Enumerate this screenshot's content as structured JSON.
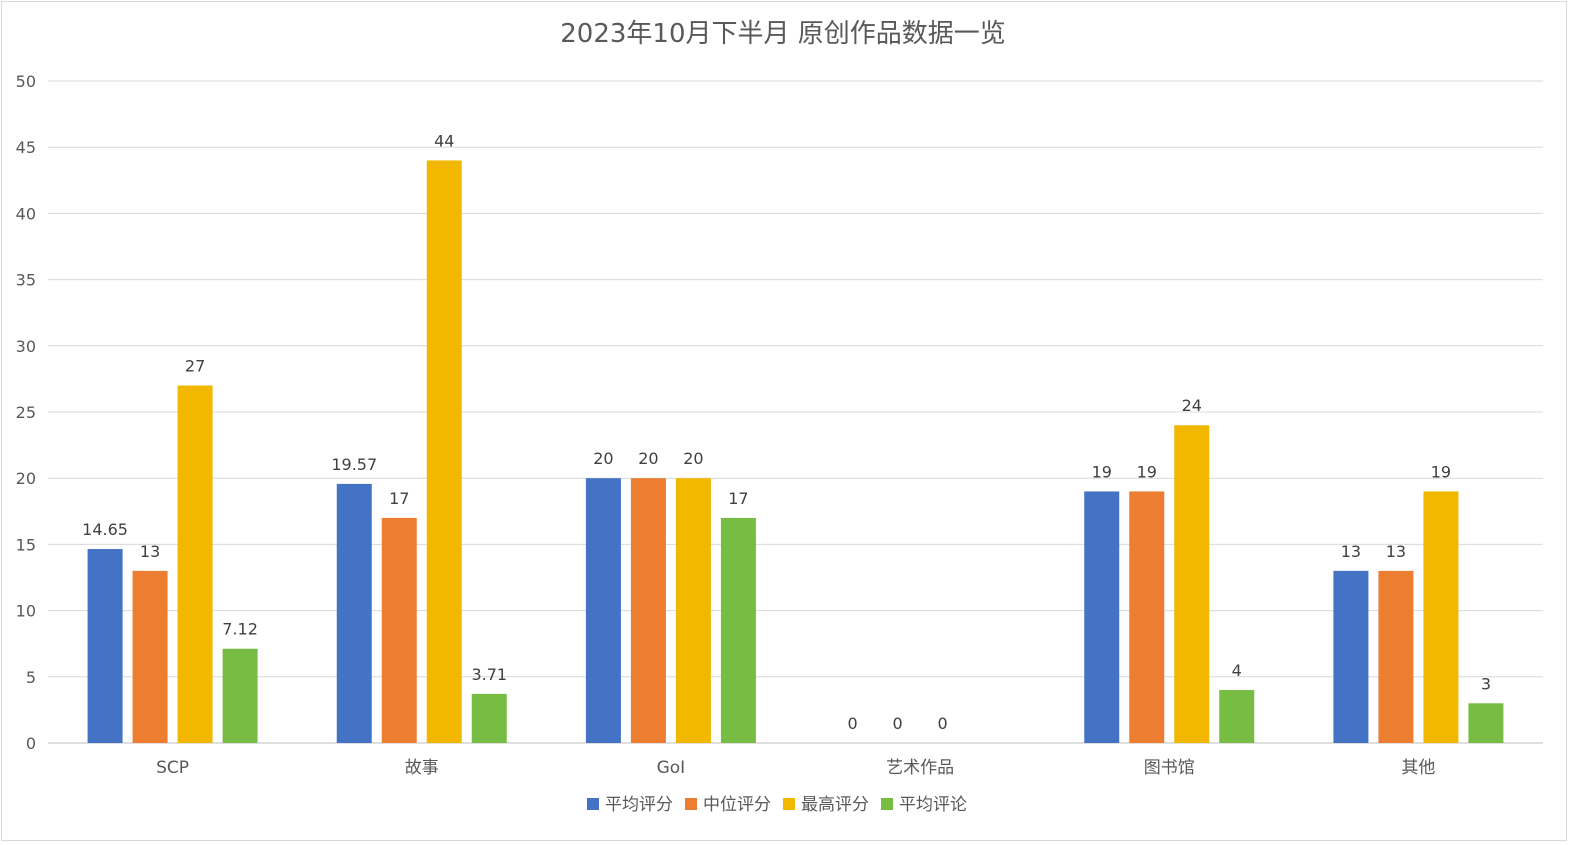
{
  "chart_data": {
    "type": "bar",
    "title": "2023年10月下半月 原创作品数据一览",
    "categories": [
      "SCP",
      "故事",
      "GoI",
      "艺术作品",
      "图书馆",
      "其他"
    ],
    "series": [
      {
        "name": "平均评分",
        "color": "#4472C4",
        "values": [
          14.65,
          19.57,
          20,
          0,
          19,
          13
        ]
      },
      {
        "name": "中位评分",
        "color": "#ED7D31",
        "values": [
          13,
          17,
          20,
          0,
          19,
          13
        ]
      },
      {
        "name": "最高评分",
        "color": "#F2B800",
        "values": [
          27,
          44,
          20,
          0,
          24,
          19
        ]
      },
      {
        "name": "平均评论",
        "color": "#77BD43",
        "values": [
          7.12,
          3.71,
          17,
          null,
          4,
          3
        ]
      }
    ],
    "ylim": [
      0,
      50
    ],
    "yticks": [
      0,
      5,
      10,
      15,
      20,
      25,
      30,
      35,
      40,
      45,
      50
    ],
    "grid": true,
    "legend": "bottom"
  }
}
